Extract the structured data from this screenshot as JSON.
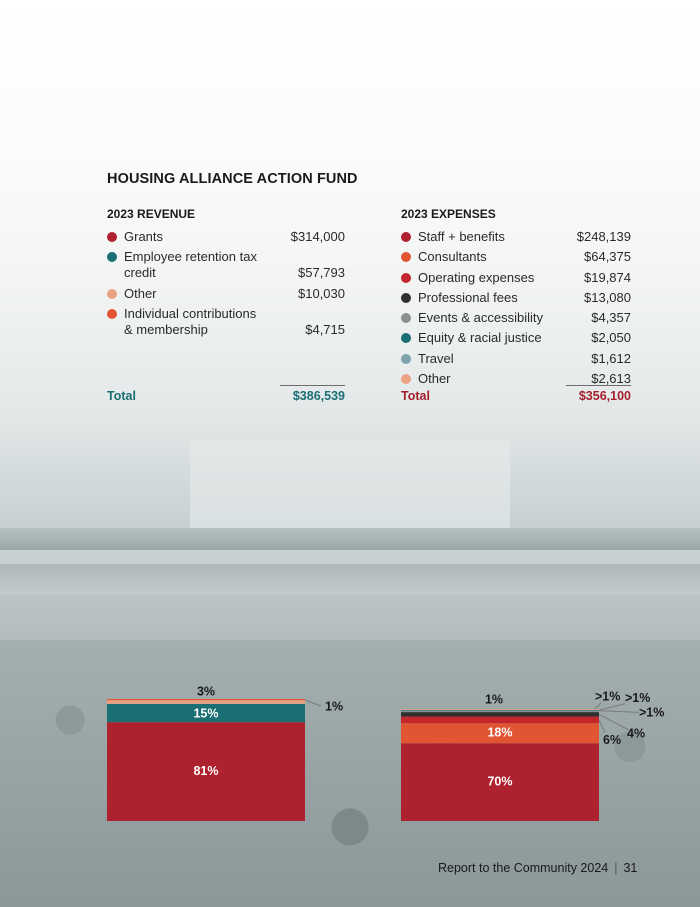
{
  "title": "HOUSING ALLIANCE ACTION FUND",
  "colors": {
    "crimson": "#ae212f",
    "teal": "#1a6f74",
    "peach": "#eba283",
    "orange": "#e15532",
    "red": "#c4262e",
    "charcoal": "#2f2f2f",
    "gray": "#8d8f8f",
    "slate": "#7ea3ad"
  },
  "revenue": {
    "heading": "2023 REVENUE",
    "items": [
      {
        "label": "Grants",
        "amount": "$314,000",
        "color": "#ae212f"
      },
      {
        "label": "Employee retention tax credit",
        "amount": "$57,793",
        "color": "#1a6f74"
      },
      {
        "label": "Other",
        "amount": "$10,030",
        "color": "#eba283"
      },
      {
        "label": "Individual contributions & membership",
        "amount": "$4,715",
        "color": "#e15532"
      }
    ],
    "total_label": "Total",
    "total_amount": "$386,539"
  },
  "expenses": {
    "heading": "2023 EXPENSES",
    "items": [
      {
        "label": "Staff + benefits",
        "amount": "$248,139",
        "color": "#ae212f"
      },
      {
        "label": "Consultants",
        "amount": "$64,375",
        "color": "#e15532"
      },
      {
        "label": "Operating expenses",
        "amount": "$19,874",
        "color": "#c4262e"
      },
      {
        "label": "Professional fees",
        "amount": "$13,080",
        "color": "#2f2f2f"
      },
      {
        "label": "Events & accessibility",
        "amount": "$4,357",
        "color": "#8d8f8f"
      },
      {
        "label": "Equity & racial justice",
        "amount": "$2,050",
        "color": "#1a6f74"
      },
      {
        "label": "Travel",
        "amount": "$1,612",
        "color": "#7ea3ad"
      },
      {
        "label": "Other",
        "amount": "$2,613",
        "color": "#eba283"
      }
    ],
    "total_label": "Total",
    "total_amount": "$356,100"
  },
  "chart_data": [
    {
      "type": "bar",
      "stacked": true,
      "orientation": "vertical",
      "segments": [
        {
          "value": 81,
          "label": "81%",
          "color": "#ae212f"
        },
        {
          "value": 15,
          "label": "15%",
          "color": "#1a6f74"
        },
        {
          "value": 3,
          "label": "3%",
          "color": "#eba283"
        },
        {
          "value": 1,
          "label": "1%",
          "color": "#e15532"
        }
      ]
    },
    {
      "type": "bar",
      "stacked": true,
      "orientation": "vertical",
      "segments": [
        {
          "value": 70,
          "label": "70%",
          "color": "#ae212f"
        },
        {
          "value": 18,
          "label": "18%",
          "color": "#e15532"
        },
        {
          "value": 6,
          "label": "6%",
          "color": "#c4262e"
        },
        {
          "value": 4,
          "label": "4%",
          "color": "#2f2f2f"
        },
        {
          "value": 1,
          "label": "1%",
          "color": "#8d8f8f"
        },
        {
          "value": 0.6,
          "label": ">1%",
          "color": "#1a6f74"
        },
        {
          "value": 0.5,
          "label": ">1%",
          "color": "#7ea3ad"
        },
        {
          "value": 0.7,
          "label": ">1%",
          "color": "#eba283"
        }
      ]
    }
  ],
  "footer": {
    "report": "Report to the Community 2024",
    "separator": "|",
    "page": "31"
  }
}
